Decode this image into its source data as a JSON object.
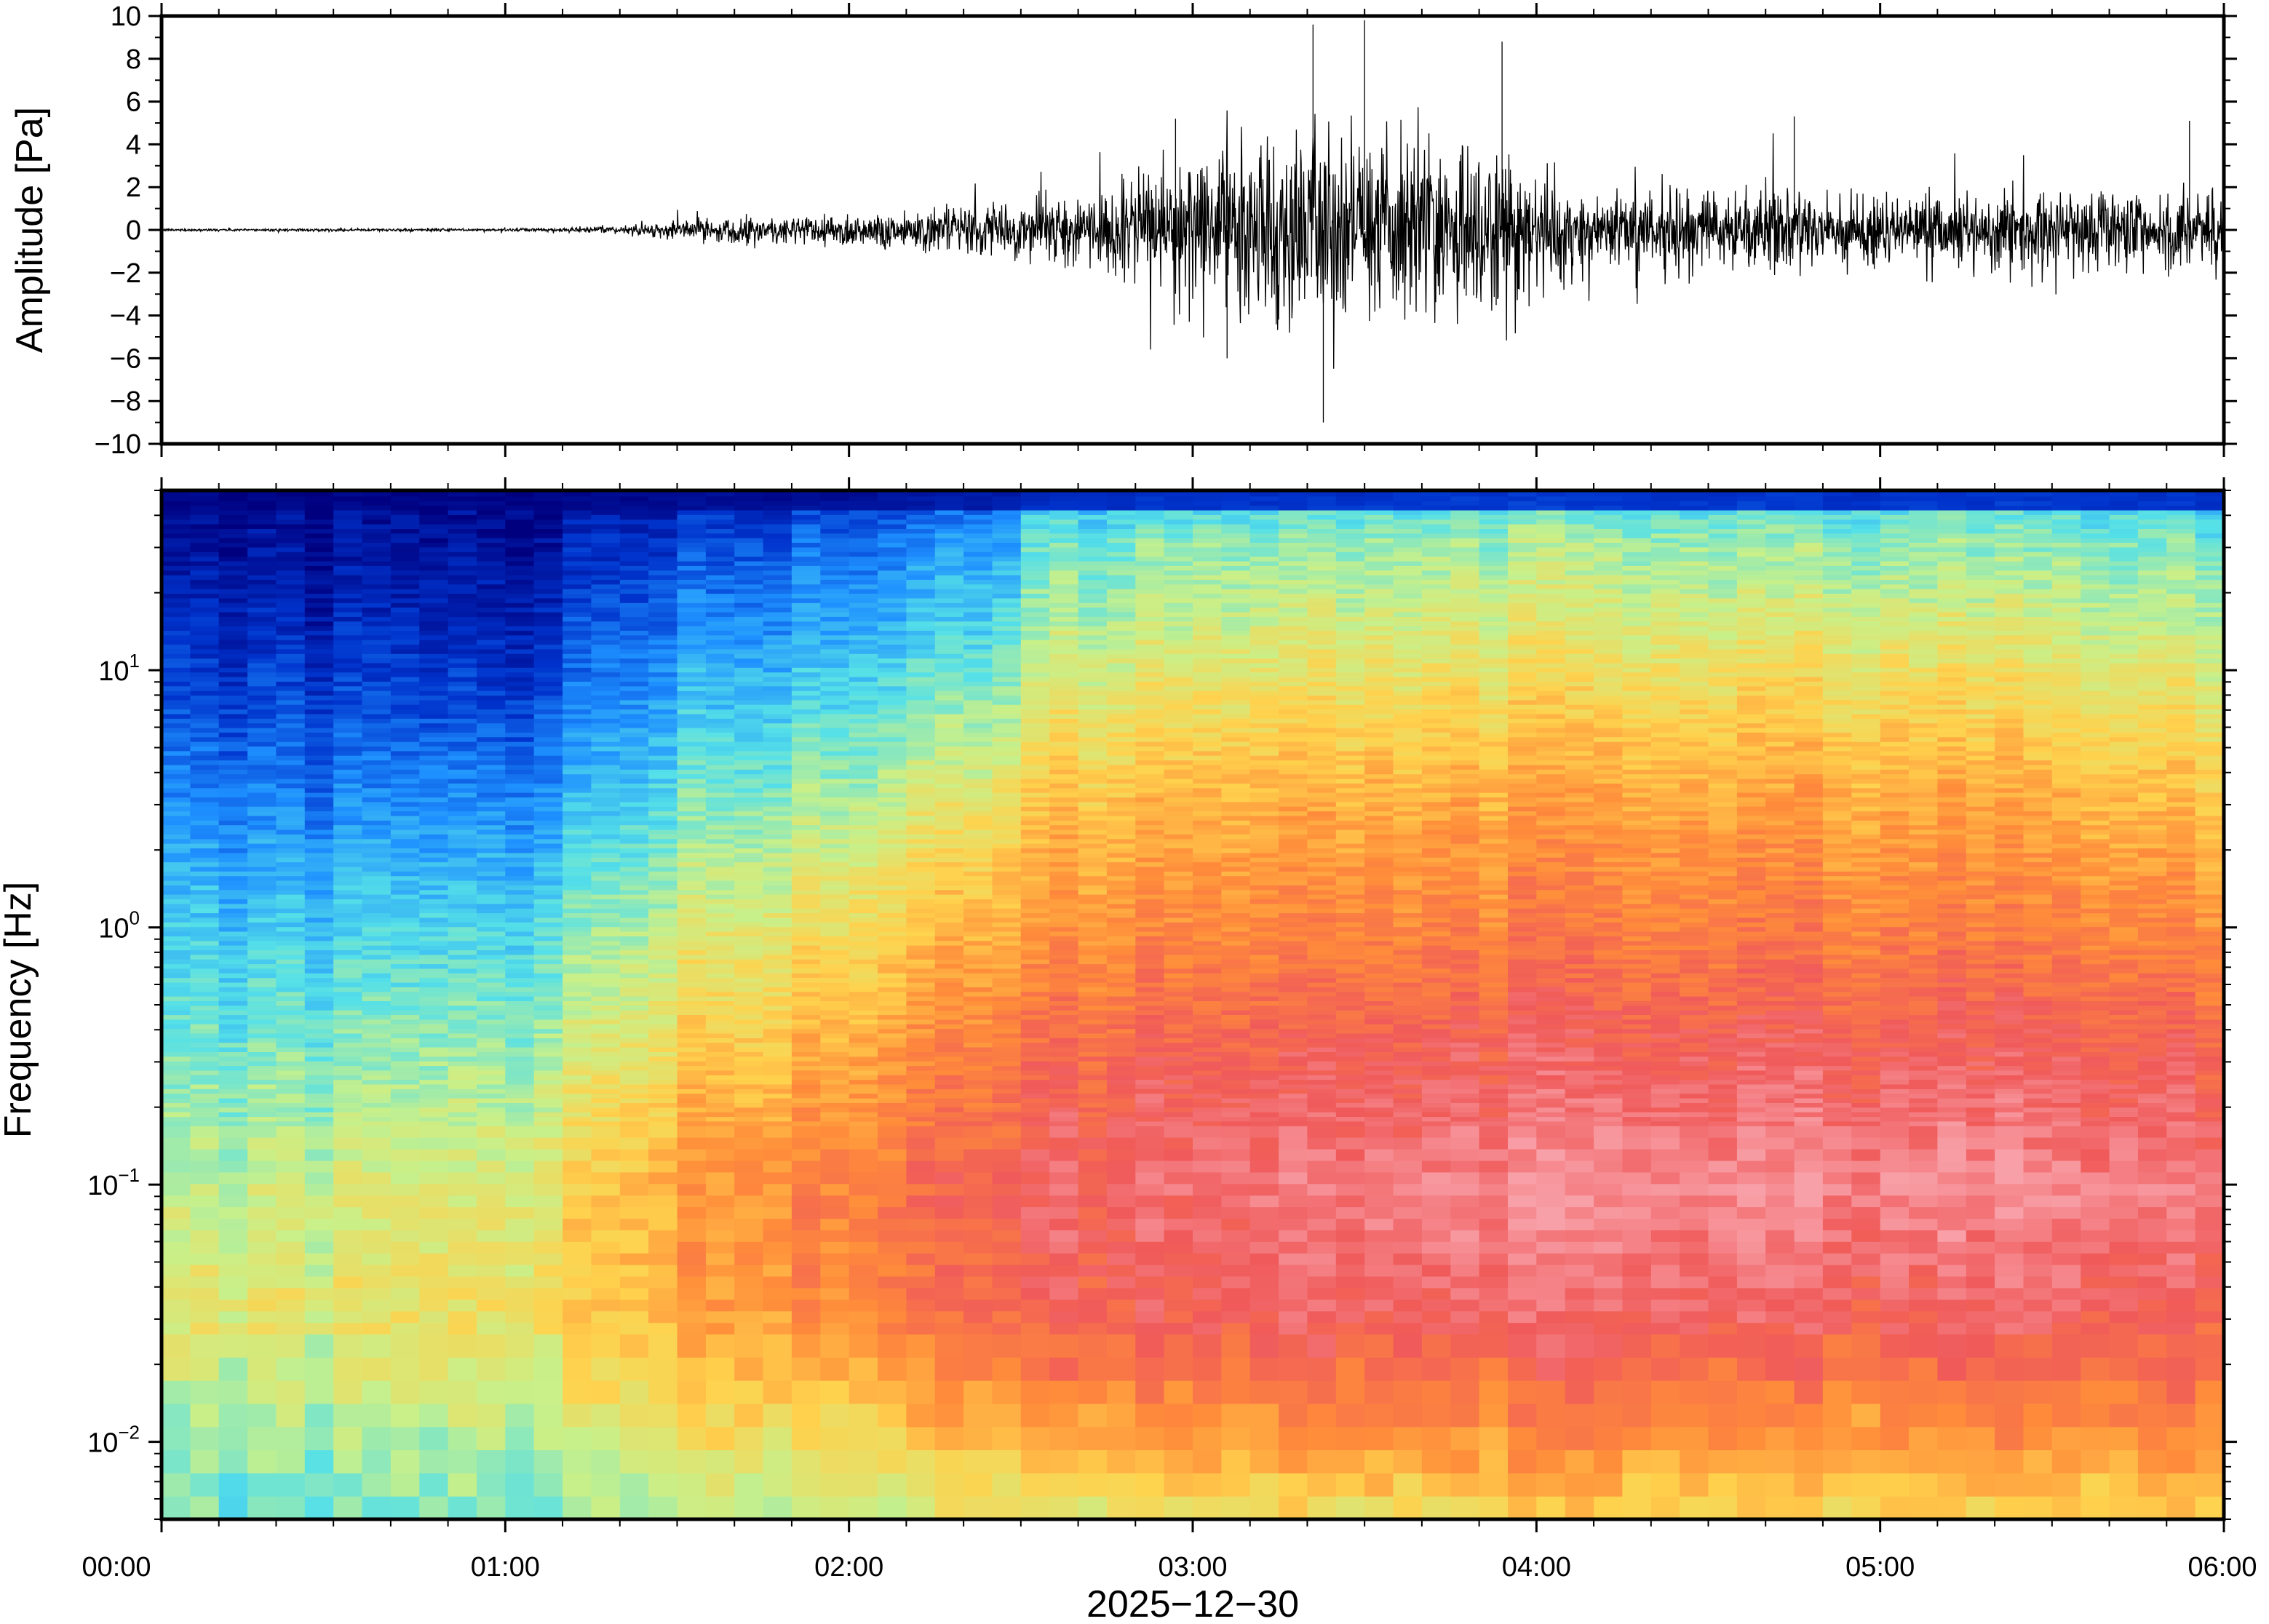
{
  "chart_data": [
    {
      "type": "line",
      "name": "waveform",
      "ylabel": "Amplitude [Pa]",
      "ylim": [
        -10,
        10
      ],
      "yticks": [
        10,
        8,
        6,
        4,
        2,
        0,
        -2,
        -4,
        -6,
        -8,
        -10
      ],
      "ytick_labels": [
        "10",
        "8",
        "6",
        "4",
        "2",
        "0",
        "−2",
        "−4",
        "−6",
        "−8",
        "−10"
      ],
      "xlim_hours": [
        0,
        6
      ],
      "envelope": {
        "hours": [
          0.0,
          1.0,
          1.3,
          1.6,
          2.0,
          2.5,
          2.9,
          3.0,
          3.4,
          3.8,
          3.95,
          4.1,
          4.5,
          5.0,
          5.5,
          6.0
        ],
        "amplitude": [
          0.05,
          0.06,
          0.12,
          0.5,
          0.7,
          1.1,
          2.2,
          3.4,
          4.0,
          3.6,
          3.2,
          1.7,
          1.6,
          1.5,
          1.6,
          1.7
        ]
      },
      "peaks": [
        {
          "hour": 3.35,
          "value": 9.6
        },
        {
          "hour": 3.38,
          "value": -9.0
        },
        {
          "hour": 3.5,
          "value": 9.8
        },
        {
          "hour": 3.1,
          "value": -6.0
        },
        {
          "hour": 3.9,
          "value": 8.8
        },
        {
          "hour": 2.95,
          "value": 5.2
        },
        {
          "hour": 4.75,
          "value": 5.3
        },
        {
          "hour": 5.9,
          "value": 5.1
        }
      ]
    },
    {
      "type": "heatmap",
      "name": "spectrogram",
      "ylabel": "Frequency [Hz]",
      "yscale": "log",
      "ylim": [
        0.005,
        50
      ],
      "ytick_base": "10",
      "ytick_exponents": [
        "1",
        "0",
        "−1",
        "−2"
      ],
      "ytick_values": [
        10,
        1,
        0.1,
        0.01
      ],
      "xlabel": "2025−12−30",
      "xtick_labels": [
        "00:00",
        "01:00",
        "02:00",
        "03:00",
        "04:00",
        "05:00",
        "06:00"
      ],
      "xtick_hours": [
        0,
        1,
        2,
        3,
        4,
        5,
        6
      ],
      "colormap": "jet",
      "colormap_colors": [
        "#00007f",
        "#0033cc",
        "#1e90ff",
        "#55e0e8",
        "#c8f08a",
        "#ffd24d",
        "#ff8c3a",
        "#f05a5a",
        "#f8a0a8"
      ],
      "power_note_grid": {
        "hours": [
          0.0,
          1.0,
          1.5,
          2.0,
          2.45,
          2.5,
          3.0,
          4.0,
          5.0,
          6.0
        ],
        "log10_hz": [
          -2.3,
          -2.0,
          -1.5,
          -1.0,
          -0.5,
          0.0,
          0.5,
          1.0,
          1.5,
          1.7
        ],
        "levels": [
          [
            0.42,
            0.4,
            0.46,
            0.5,
            0.52,
            0.56,
            0.58,
            0.6,
            0.62,
            0.62
          ],
          [
            0.44,
            0.46,
            0.58,
            0.62,
            0.66,
            0.7,
            0.72,
            0.74,
            0.72,
            0.74
          ],
          [
            0.56,
            0.56,
            0.7,
            0.78,
            0.82,
            0.86,
            0.88,
            0.9,
            0.88,
            0.88
          ],
          [
            0.5,
            0.52,
            0.72,
            0.8,
            0.84,
            0.9,
            0.92,
            0.96,
            0.96,
            0.94
          ],
          [
            0.42,
            0.44,
            0.62,
            0.72,
            0.78,
            0.84,
            0.86,
            0.88,
            0.88,
            0.86
          ],
          [
            0.34,
            0.34,
            0.52,
            0.62,
            0.68,
            0.74,
            0.76,
            0.78,
            0.78,
            0.76
          ],
          [
            0.24,
            0.22,
            0.4,
            0.5,
            0.56,
            0.64,
            0.68,
            0.7,
            0.7,
            0.66
          ],
          [
            0.14,
            0.1,
            0.28,
            0.36,
            0.4,
            0.52,
            0.56,
            0.58,
            0.58,
            0.54
          ],
          [
            0.05,
            0.02,
            0.14,
            0.22,
            0.26,
            0.4,
            0.44,
            0.46,
            0.44,
            0.42
          ],
          [
            0.03,
            0.01,
            0.08,
            0.12,
            0.16,
            0.3,
            0.32,
            0.34,
            0.34,
            0.32
          ]
        ]
      }
    }
  ]
}
